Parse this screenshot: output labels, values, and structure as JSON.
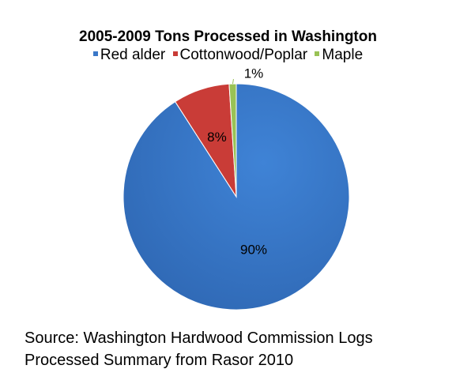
{
  "chart_data": {
    "type": "pie",
    "title": "2005-2009 Tons Processed in Washington",
    "legend_placement": "top",
    "categories": [
      "Red alder",
      "Cottonwood/Poplar",
      "Maple"
    ],
    "values": [
      90,
      8,
      1
    ],
    "data_labels": [
      "90%",
      "8%",
      "1%"
    ],
    "colors": [
      "#3a78c8",
      "#c93c37",
      "#99c255"
    ]
  },
  "source": {
    "line1": "Source: Washington Hardwood Commission Logs",
    "line2": "Processed Summary from Rasor 2010"
  }
}
